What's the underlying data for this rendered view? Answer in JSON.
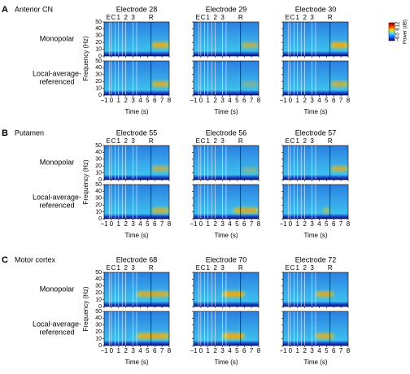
{
  "panels": [
    {
      "letter": "A",
      "region": "Anterior CN",
      "electrodes": [
        "Electrode 28",
        "Electrode 29",
        "Electrode 30"
      ],
      "rows": [
        [
          "Monopolar"
        ],
        [
          "Local-average-",
          "referenced"
        ]
      ]
    },
    {
      "letter": "B",
      "region": "Putamen",
      "electrodes": [
        "Electrode 55",
        "Electrode 56",
        "Electrode 57"
      ],
      "rows": [
        [
          "Monopolar"
        ],
        [
          "Local-average-",
          "referenced"
        ]
      ]
    },
    {
      "letter": "C",
      "region": "Motor cortex",
      "electrodes": [
        "Electrode 68",
        "Electrode 70",
        "Electrode 72"
      ],
      "rows": [
        [
          "Monopolar"
        ],
        [
          "Local-average-",
          "referenced"
        ]
      ]
    }
  ],
  "y_label": "Frequency (Hz)",
  "x_label": "Time (s)",
  "freq_ticks": [
    "0",
    "10",
    "20",
    "30",
    "40",
    "50"
  ],
  "time_ticks": [
    "−1",
    "0",
    "1",
    "2",
    "3",
    "4",
    "5",
    "6",
    "7",
    "8"
  ],
  "event_labels": [
    "E",
    "C",
    "1",
    "2",
    "3",
    "R"
  ],
  "colorbar": {
    "label": "Power (dB)",
    "ticks": [
      "12",
      "6",
      "0",
      "−6"
    ]
  }
}
